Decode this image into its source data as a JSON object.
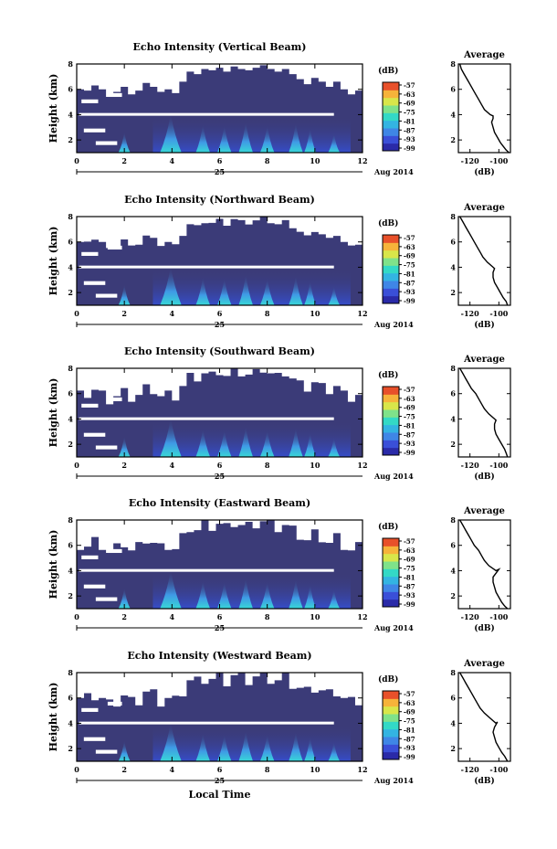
{
  "colors": {
    "background_region": "#3b3b78",
    "colormap": [
      "#2a2aa8",
      "#3a4fd8",
      "#3f86e6",
      "#33b4e2",
      "#33d9c6",
      "#7fe28a",
      "#d8e64a",
      "#f6b33a",
      "#e8502a"
    ]
  },
  "shared": {
    "time_ticks": [
      "0",
      "2",
      "4",
      "6",
      "8",
      "10",
      "12"
    ],
    "day_label": "25",
    "month_year_label": "Aug 2014",
    "x_label": "Local Time",
    "y_label": "Height (km)",
    "colorbar_unit": "(dB)",
    "colorbar_ticks": [
      "-57",
      "-63",
      "-69",
      "-75",
      "-81",
      "-87",
      "-93",
      "-99"
    ],
    "avg_title": "Average",
    "avg_xlabel": "(dB)",
    "avg_y_ticks": [
      "2",
      "4",
      "6",
      "8"
    ]
  },
  "chart_data": [
    {
      "type": "heatmap",
      "title": "Echo Intensity (Vertical Beam)",
      "xlabel": "",
      "ylabel": "Height (km)",
      "xlim": [
        0,
        12
      ],
      "ylim": [
        1,
        8
      ],
      "colorbar": {
        "label": "(dB)",
        "range": [
          -99,
          -57
        ]
      },
      "average_profile": {
        "title": "Average",
        "xlabel": "(dB)",
        "x_ticks": [
          "-120",
          "-100"
        ],
        "xlim": [
          -128,
          -92
        ],
        "ylim": [
          1,
          8
        ],
        "points": [
          [
            -127,
            8.0
          ],
          [
            -126,
            7.6
          ],
          [
            -124,
            7.2
          ],
          [
            -122,
            6.8
          ],
          [
            -120,
            6.4
          ],
          [
            -118,
            6.0
          ],
          [
            -116,
            5.6
          ],
          [
            -114,
            5.2
          ],
          [
            -112,
            4.8
          ],
          [
            -110,
            4.4
          ],
          [
            -106,
            4.0
          ],
          [
            -104,
            3.9
          ],
          [
            -104,
            3.7
          ],
          [
            -105,
            3.4
          ],
          [
            -104,
            3.0
          ],
          [
            -103,
            2.6
          ],
          [
            -101,
            2.2
          ],
          [
            -99,
            1.8
          ],
          [
            -97,
            1.5
          ],
          [
            -95,
            1.2
          ],
          [
            -93,
            1.0
          ]
        ]
      }
    },
    {
      "type": "heatmap",
      "title": "Echo Intensity (Northward Beam)",
      "xlabel": "",
      "ylabel": "Height (km)",
      "xlim": [
        0,
        12
      ],
      "ylim": [
        1,
        8
      ],
      "colorbar": {
        "label": "(dB)",
        "range": [
          -99,
          -57
        ]
      },
      "average_profile": {
        "title": "Average",
        "xlabel": "(dB)",
        "x_ticks": [
          "-120",
          "-100"
        ],
        "xlim": [
          -128,
          -92
        ],
        "ylim": [
          1,
          8
        ],
        "points": [
          [
            -127,
            8.0
          ],
          [
            -125,
            7.6
          ],
          [
            -123,
            7.2
          ],
          [
            -121,
            6.8
          ],
          [
            -119,
            6.4
          ],
          [
            -117,
            6.0
          ],
          [
            -115,
            5.6
          ],
          [
            -113,
            5.2
          ],
          [
            -111,
            4.8
          ],
          [
            -108,
            4.4
          ],
          [
            -104,
            4.0
          ],
          [
            -103,
            3.9
          ],
          [
            -104,
            3.6
          ],
          [
            -104,
            3.2
          ],
          [
            -103,
            2.8
          ],
          [
            -101,
            2.4
          ],
          [
            -99,
            2.0
          ],
          [
            -97,
            1.6
          ],
          [
            -95,
            1.3
          ],
          [
            -94,
            1.0
          ]
        ]
      }
    },
    {
      "type": "heatmap",
      "title": "Echo Intensity (Southward Beam)",
      "xlabel": "",
      "ylabel": "Height (km)",
      "xlim": [
        0,
        12
      ],
      "ylim": [
        1,
        8
      ],
      "colorbar": {
        "label": "(dB)",
        "range": [
          -99,
          -57
        ]
      },
      "average_profile": {
        "title": "Average",
        "xlabel": "(dB)",
        "x_ticks": [
          "-120",
          "-100"
        ],
        "xlim": [
          -128,
          -92
        ],
        "ylim": [
          1,
          8
        ],
        "points": [
          [
            -127,
            8.0
          ],
          [
            -125,
            7.6
          ],
          [
            -123,
            7.2
          ],
          [
            -121,
            6.8
          ],
          [
            -119,
            6.4
          ],
          [
            -116,
            6.0
          ],
          [
            -114,
            5.6
          ],
          [
            -112,
            5.2
          ],
          [
            -110,
            4.8
          ],
          [
            -107,
            4.4
          ],
          [
            -103,
            4.0
          ],
          [
            -102,
            3.9
          ],
          [
            -103,
            3.6
          ],
          [
            -103,
            3.2
          ],
          [
            -102,
            2.8
          ],
          [
            -100,
            2.4
          ],
          [
            -98,
            2.0
          ],
          [
            -96,
            1.6
          ],
          [
            -95,
            1.3
          ],
          [
            -94,
            1.0
          ]
        ]
      }
    },
    {
      "type": "heatmap",
      "title": "Echo Intensity (Eastward Beam)",
      "xlabel": "",
      "ylabel": "Height (km)",
      "xlim": [
        0,
        12
      ],
      "ylim": [
        1,
        8
      ],
      "colorbar": {
        "label": "(dB)",
        "range": [
          -99,
          -57
        ]
      },
      "average_profile": {
        "title": "Average",
        "xlabel": "(dB)",
        "x_ticks": [
          "-120",
          "-100"
        ],
        "xlim": [
          -128,
          -92
        ],
        "ylim": [
          1,
          8
        ],
        "points": [
          [
            -127,
            8.0
          ],
          [
            -125,
            7.6
          ],
          [
            -123,
            7.2
          ],
          [
            -121,
            6.8
          ],
          [
            -119,
            6.4
          ],
          [
            -117,
            6.0
          ],
          [
            -114,
            5.6
          ],
          [
            -112,
            5.2
          ],
          [
            -110,
            4.8
          ],
          [
            -107,
            4.4
          ],
          [
            -102,
            4.0
          ],
          [
            -100,
            4.1
          ],
          [
            -102,
            3.8
          ],
          [
            -104,
            3.5
          ],
          [
            -104,
            3.1
          ],
          [
            -103,
            2.7
          ],
          [
            -102,
            2.3
          ],
          [
            -100,
            1.9
          ],
          [
            -98,
            1.5
          ],
          [
            -96,
            1.2
          ],
          [
            -94,
            1.0
          ]
        ]
      }
    },
    {
      "type": "heatmap",
      "title": "Echo Intensity (Westward Beam)",
      "xlabel": "Local Time",
      "ylabel": "Height (km)",
      "xlim": [
        0,
        12
      ],
      "ylim": [
        1,
        8
      ],
      "colorbar": {
        "label": "(dB)",
        "range": [
          -99,
          -57
        ]
      },
      "average_profile": {
        "title": "Average",
        "xlabel": "(dB)",
        "x_ticks": [
          "-120",
          "-100"
        ],
        "xlim": [
          -128,
          -92
        ],
        "ylim": [
          1,
          8
        ],
        "points": [
          [
            -127,
            8.0
          ],
          [
            -125,
            7.6
          ],
          [
            -123,
            7.2
          ],
          [
            -121,
            6.8
          ],
          [
            -119,
            6.4
          ],
          [
            -117,
            6.0
          ],
          [
            -115,
            5.6
          ],
          [
            -113,
            5.2
          ],
          [
            -110,
            4.8
          ],
          [
            -106,
            4.4
          ],
          [
            -102,
            4.0
          ],
          [
            -101,
            4.1
          ],
          [
            -103,
            3.7
          ],
          [
            -104,
            3.3
          ],
          [
            -103,
            2.9
          ],
          [
            -102,
            2.5
          ],
          [
            -100,
            2.1
          ],
          [
            -98,
            1.7
          ],
          [
            -96,
            1.4
          ],
          [
            -94,
            1.0
          ]
        ]
      }
    }
  ]
}
